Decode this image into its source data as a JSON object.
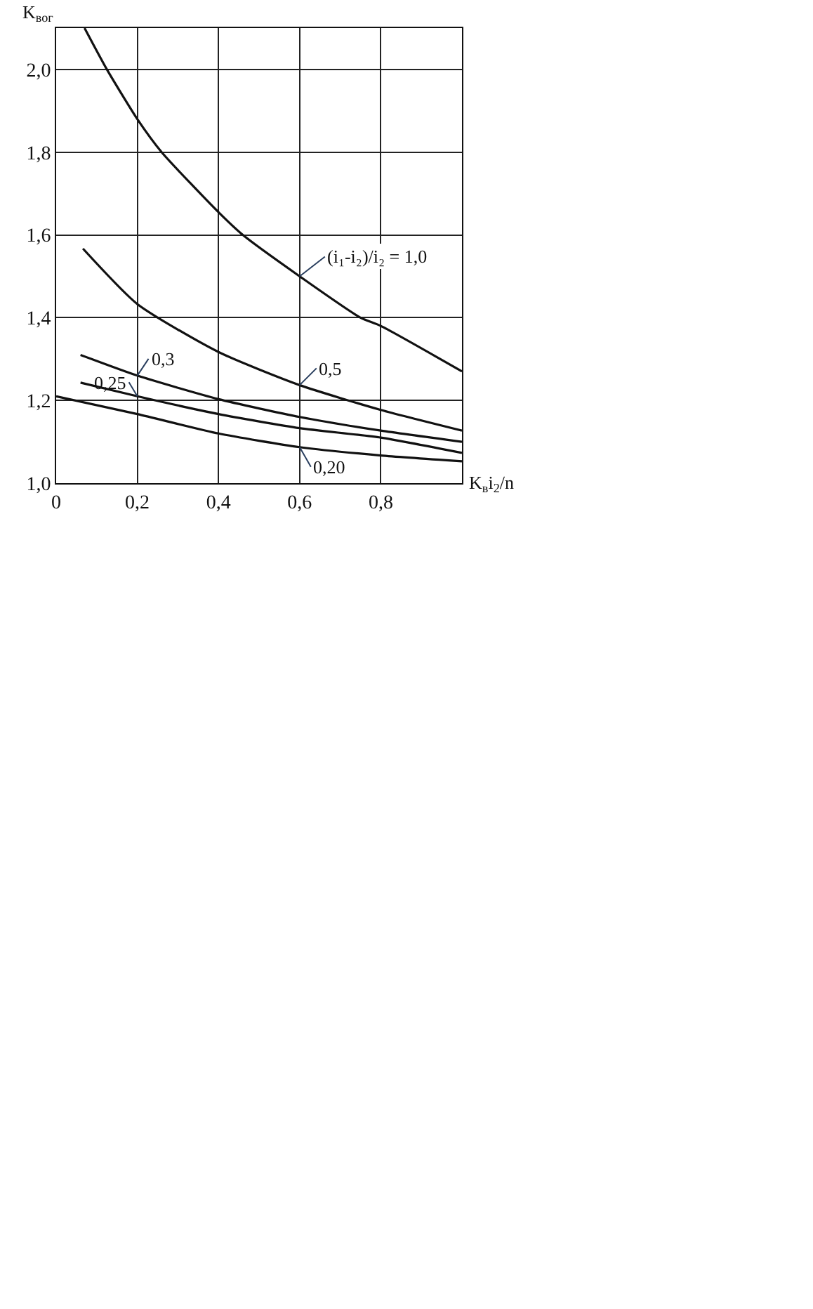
{
  "chart_data": {
    "type": "line",
    "xlabel": "K$_{в}$i$_{2}$/n",
    "ylabel": "K$_{вог}$",
    "xlim": [
      0,
      1.0
    ],
    "ylim": [
      1.0,
      2.1
    ],
    "xticks": [
      {
        "value": 0,
        "label": "0"
      },
      {
        "value": 0.2,
        "label": "0,2"
      },
      {
        "value": 0.4,
        "label": "0,4"
      },
      {
        "value": 0.6,
        "label": "0,6"
      },
      {
        "value": 0.8,
        "label": "0,8"
      }
    ],
    "yticks": [
      {
        "value": 1.0,
        "label": "1,0"
      },
      {
        "value": 1.2,
        "label": "1,2"
      },
      {
        "value": 1.4,
        "label": "1,4"
      },
      {
        "value": 1.6,
        "label": "1,6"
      },
      {
        "value": 1.8,
        "label": "1,8"
      },
      {
        "value": 2.0,
        "label": "2,0"
      }
    ],
    "grid": true,
    "legend": false,
    "marker": "none",
    "line_style": "solid",
    "series": [
      {
        "name": "(i₁-i₂)/i₂ = 1,0",
        "color": "#111111",
        "x": [
          0.07,
          0.125,
          0.2,
          0.26,
          0.4,
          0.46,
          0.6,
          0.75,
          0.8,
          1.0
        ],
        "values": [
          2.1,
          2.0,
          1.88,
          1.8,
          1.655,
          1.6,
          1.5,
          1.4,
          1.38,
          1.27
        ]
      },
      {
        "name": "0,5",
        "color": "#111111",
        "x": [
          0.066,
          0.2,
          0.4,
          0.6,
          0.8,
          1.0
        ],
        "values": [
          1.567,
          1.433,
          1.317,
          1.237,
          1.177,
          1.127
        ]
      },
      {
        "name": "0,3",
        "color": "#111111",
        "x": [
          0.06,
          0.2,
          0.4,
          0.6,
          0.8,
          1.0
        ],
        "values": [
          1.31,
          1.26,
          1.203,
          1.16,
          1.127,
          1.1
        ]
      },
      {
        "name": "0,25",
        "color": "#111111",
        "x": [
          0.06,
          0.2,
          0.4,
          0.6,
          0.8,
          1.0
        ],
        "values": [
          1.243,
          1.21,
          1.167,
          1.133,
          1.11,
          1.073
        ]
      },
      {
        "name": "0,20",
        "color": "#111111",
        "x": [
          0.0,
          0.2,
          0.4,
          0.6,
          0.8,
          1.0
        ],
        "values": [
          1.21,
          1.167,
          1.12,
          1.087,
          1.067,
          1.053
        ]
      }
    ]
  }
}
